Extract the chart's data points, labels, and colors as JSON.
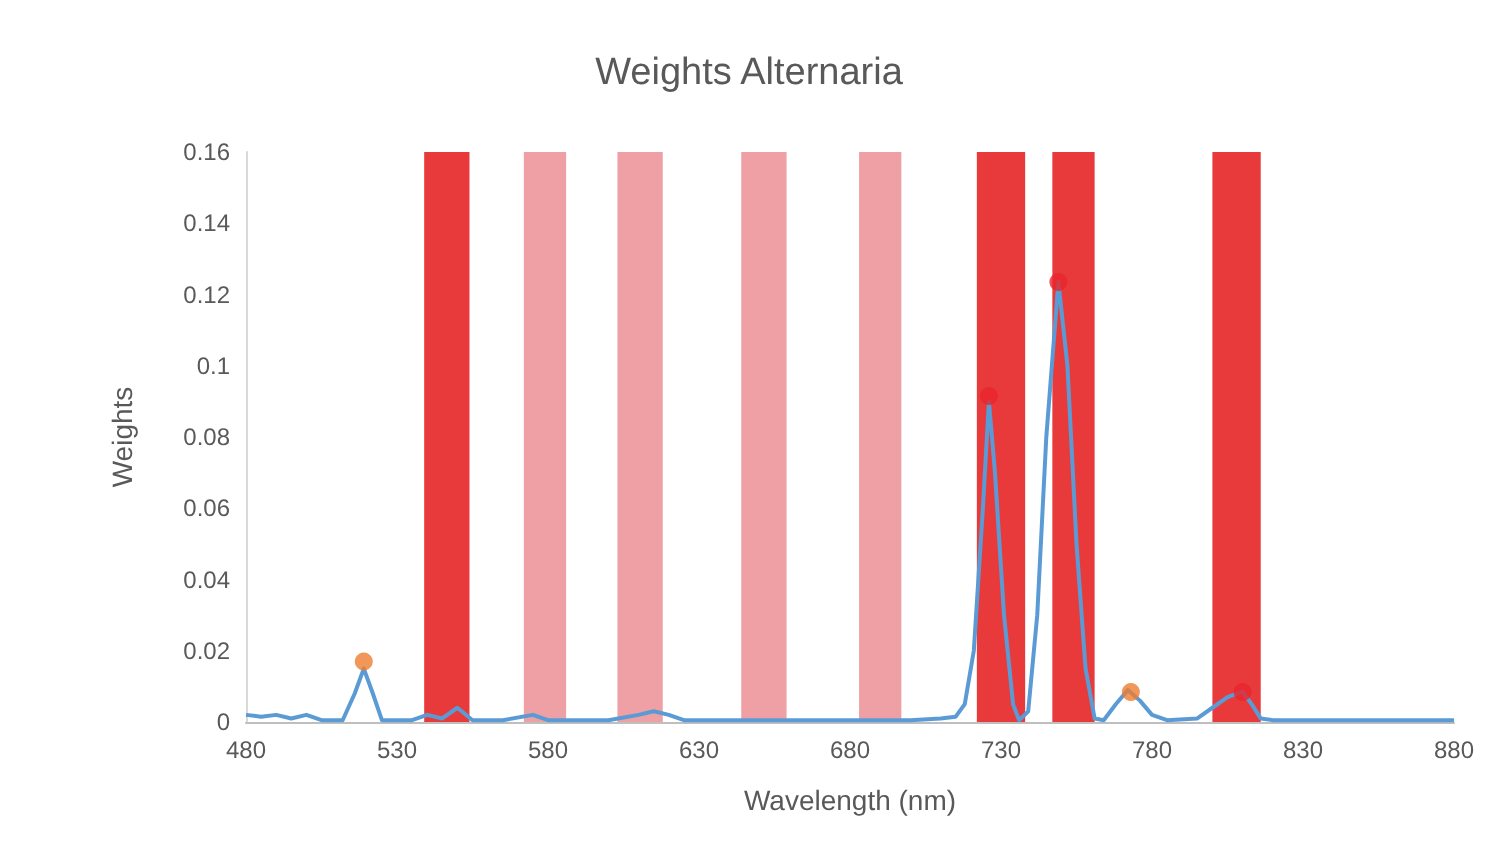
{
  "chart_data": {
    "type": "line",
    "title": "Weights Alternaria",
    "xlabel": "Wavelength (nm)",
    "ylabel": "Weights",
    "xlim": [
      480,
      880
    ],
    "xticks": [
      480,
      530,
      580,
      630,
      680,
      730,
      780,
      830,
      880
    ],
    "ylim": [
      0,
      0.16
    ],
    "yticks": [
      0,
      0.02,
      0.04,
      0.06,
      0.08,
      0.1,
      0.12,
      0.14,
      0.16
    ],
    "grid": false,
    "series": [
      {
        "color": "#5b9bd5",
        "marker": "none",
        "x": [
          480,
          485,
          490,
          495,
          500,
          505,
          512,
          516,
          519,
          522,
          525,
          535,
          540,
          545,
          550,
          555,
          565,
          575,
          580,
          600,
          610,
          615,
          620,
          625,
          680,
          700,
          710,
          715,
          718,
          721,
          724,
          726,
          728,
          731,
          734,
          736,
          739,
          742,
          745,
          749,
          752,
          755,
          758,
          761,
          764,
          768,
          772,
          776,
          780,
          785,
          795,
          800,
          805,
          810,
          813,
          816,
          820,
          850,
          880
        ],
        "values": [
          0.002,
          0.0015,
          0.002,
          0.001,
          0.002,
          0.0005,
          0.0005,
          0.008,
          0.015,
          0.008,
          0.0005,
          0.0005,
          0.002,
          0.001,
          0.004,
          0.0005,
          0.0005,
          0.002,
          0.0005,
          0.0005,
          0.002,
          0.003,
          0.002,
          0.0005,
          0.0005,
          0.0005,
          0.001,
          0.0015,
          0.005,
          0.02,
          0.06,
          0.09,
          0.07,
          0.03,
          0.005,
          0.0005,
          0.003,
          0.03,
          0.08,
          0.1235,
          0.1,
          0.05,
          0.015,
          0.001,
          0.0005,
          0.005,
          0.009,
          0.006,
          0.002,
          0.0005,
          0.001,
          0.004,
          0.007,
          0.0085,
          0.005,
          0.001,
          0.0005,
          0.0005,
          0.0005
        ]
      },
      {
        "type": "scatter",
        "marker": "circle",
        "x": [
          519,
          726,
          749,
          773,
          810
        ],
        "values": [
          0.017,
          0.0915,
          0.1235,
          0.0084,
          0.0084
        ],
        "colors": [
          "#ed7d31",
          "#e8262a",
          "#e8262a",
          "#ed7d31",
          "#e8262a"
        ]
      }
    ],
    "bands": [
      {
        "axis": "x",
        "from": 539,
        "to": 554,
        "color": "#e83a3a"
      },
      {
        "axis": "x",
        "from": 572,
        "to": 586,
        "color": "#eea0a4"
      },
      {
        "axis": "x",
        "from": 603,
        "to": 618,
        "color": "#eea0a4"
      },
      {
        "axis": "x",
        "from": 644,
        "to": 659,
        "color": "#eea0a4"
      },
      {
        "axis": "x",
        "from": 683,
        "to": 697,
        "color": "#eea0a4"
      },
      {
        "axis": "x",
        "from": 722,
        "to": 738,
        "color": "#e83a3a"
      },
      {
        "axis": "x",
        "from": 747,
        "to": 761,
        "color": "#e83a3a"
      },
      {
        "axis": "x",
        "from": 800,
        "to": 816,
        "color": "#e83a3a"
      }
    ]
  }
}
